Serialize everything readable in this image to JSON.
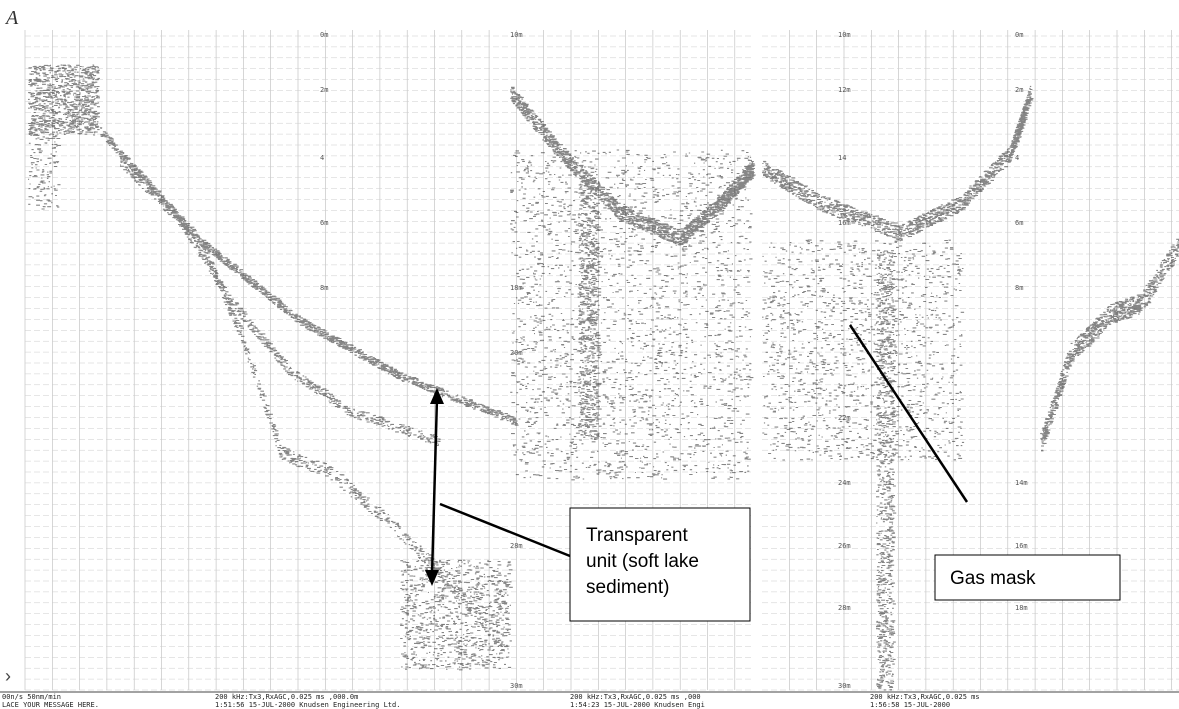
{
  "panel_label": "A",
  "callouts": [
    {
      "lines": [
        "Transparent",
        "unit (soft lake",
        "sediment)"
      ]
    },
    {
      "lines": [
        "Gas mask"
      ]
    }
  ],
  "depth_labels": {
    "left": [
      "0m",
      "2m",
      "4",
      "6m",
      "8m"
    ],
    "middle": [
      "10m",
      "18m",
      "20m",
      "28m",
      "30m"
    ],
    "right_a": [
      "10m",
      "12m",
      "14",
      "16m",
      "22m",
      "24m",
      "26m",
      "28m",
      "30m"
    ],
    "right_b": [
      "0m",
      "2m",
      "4",
      "6m",
      "8m",
      "14m",
      "16m",
      "18m"
    ]
  },
  "footer": {
    "left_lines": [
      "00n/s     50nm/min",
      "LACE YOUR MESSAGE HERE."
    ],
    "segments": [
      "200 kHz:Tx3,RxAGC,0.025 ms  ,000.0m",
      "1:51:56 15-JUL-2000  Knudsen Engineering Ltd.",
      "200 kHz:Tx3,RxAGC,0.025 ms  ,000",
      "1:54:23 15-JUL-2000  Knudsen Engi",
      "200 kHz:Tx3,RxAGC,0.025 ms",
      "1:56:58 15-JUL-2000"
    ]
  }
}
